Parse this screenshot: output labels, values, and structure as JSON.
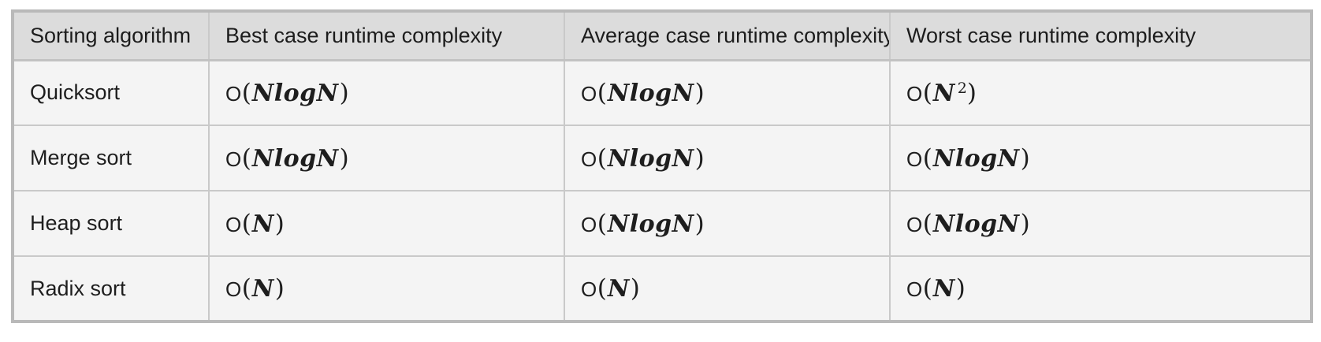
{
  "colors": {
    "page_bg": "#ffffff",
    "header_bg": "#dcdcdc",
    "row_bg": "#f4f4f4",
    "inner_border": "#c9c9c9",
    "outer_border": "#b9b9b9",
    "text": "#1e1e1e"
  },
  "table": {
    "columns": [
      "Sorting algorithm",
      "Best case runtime complexity",
      "Average case runtime complexity",
      "Worst case runtime complexity"
    ],
    "big_o": "O",
    "open_paren": "(",
    "close_paren": ")",
    "rows": [
      {
        "algorithm": "Quicksort",
        "cells": [
          {
            "base": "NlogN"
          },
          {
            "base": "NlogN"
          },
          {
            "base": "N",
            "sup": "2"
          }
        ]
      },
      {
        "algorithm": "Merge sort",
        "cells": [
          {
            "base": "NlogN"
          },
          {
            "base": "NlogN"
          },
          {
            "base": "NlogN"
          }
        ]
      },
      {
        "algorithm": "Heap sort",
        "cells": [
          {
            "base": "N"
          },
          {
            "base": "NlogN"
          },
          {
            "base": "NlogN"
          }
        ]
      },
      {
        "algorithm": "Radix sort",
        "cells": [
          {
            "base": "N"
          },
          {
            "base": "N"
          },
          {
            "base": "N"
          }
        ]
      }
    ]
  }
}
